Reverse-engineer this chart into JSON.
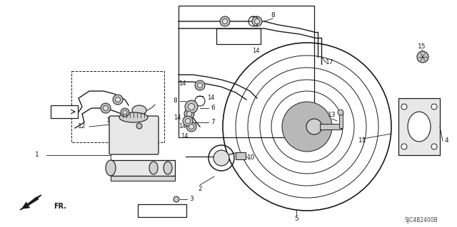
{
  "figsize": [
    6.4,
    3.19
  ],
  "dpi": 100,
  "bg_color": "#ffffff",
  "line_color": "#1a1a1a",
  "gray_fill": "#c8c8c8",
  "light_gray": "#e8e8e8",
  "diagram_code": "SJC4B2400B"
}
